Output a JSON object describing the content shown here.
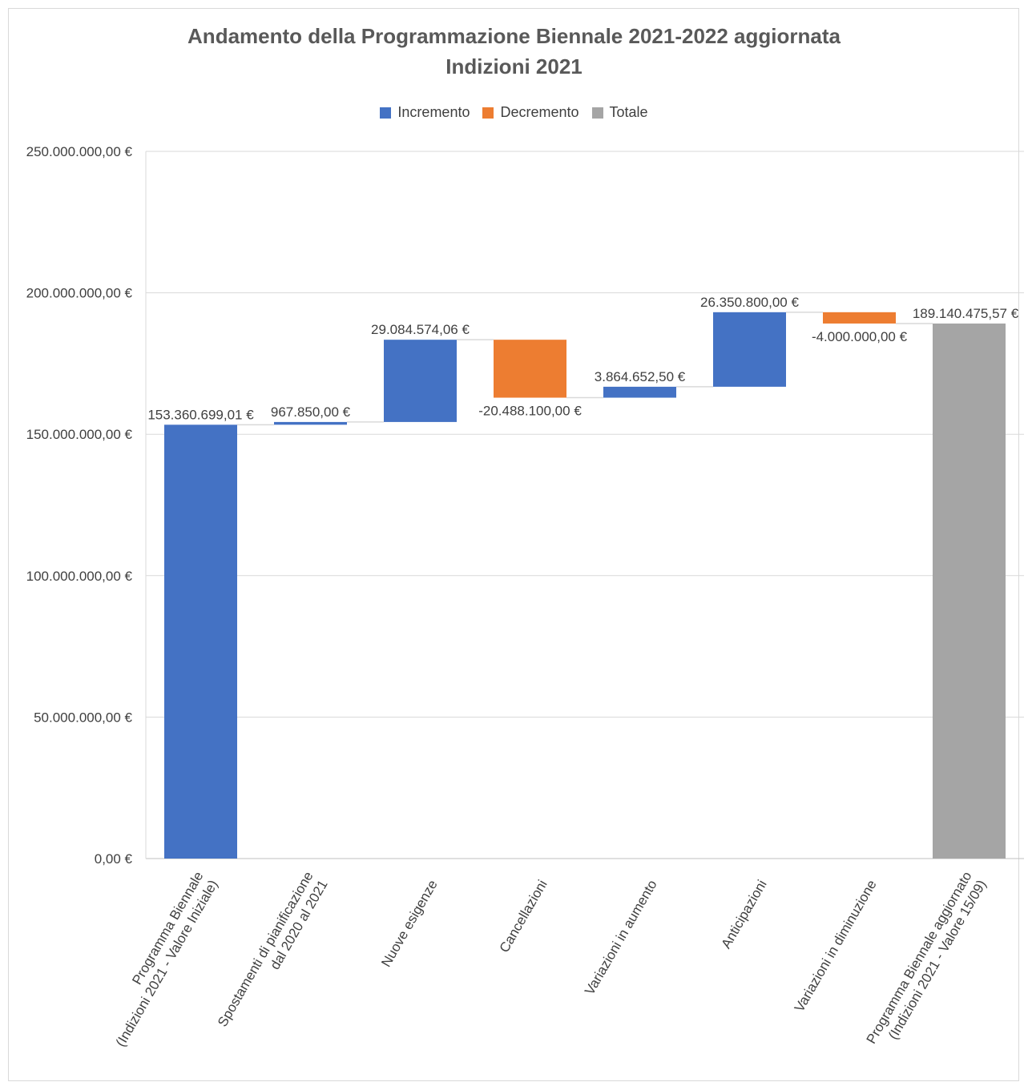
{
  "chart_data": {
    "type": "waterfall",
    "title_line1": "Andamento della Programmazione Biennale 2021-2022 aggiornata",
    "title_line2": "Indizioni 2021",
    "legend": [
      {
        "label": "Incremento",
        "color": "#4472c4"
      },
      {
        "label": "Decremento",
        "color": "#ed7d31"
      },
      {
        "label": "Totale",
        "color": "#a5a5a5"
      }
    ],
    "y_ticks": [
      "0,00 €",
      "50.000.000,00 €",
      "100.000.000,00 €",
      "150.000.000,00 €",
      "200.000.000,00 €",
      "250.000.000,00 €"
    ],
    "ylim": [
      0,
      250000000
    ],
    "grid": true,
    "legend_position": "top",
    "categories": [
      {
        "lines": [
          "Programma Biennale",
          "(Indizioni 2021 - Valore Iniziale)"
        ],
        "value": 153360699.01,
        "kind": "Incremento",
        "label": "153.360.699,01 €"
      },
      {
        "lines": [
          "Spostamenti di pianificazione",
          "dal 2020 al 2021"
        ],
        "value": 967850.0,
        "kind": "Incremento",
        "label": "967.850,00 €"
      },
      {
        "lines": [
          "Nuove esigenze"
        ],
        "value": 29084574.06,
        "kind": "Incremento",
        "label": "29.084.574,06 €"
      },
      {
        "lines": [
          "Cancellazioni"
        ],
        "value": -20488100.0,
        "kind": "Decremento",
        "label": "-20.488.100,00 €"
      },
      {
        "lines": [
          "Variazioni in aumento"
        ],
        "value": 3864652.5,
        "kind": "Incremento",
        "label": "3.864.652,50 €"
      },
      {
        "lines": [
          "Anticipazioni"
        ],
        "value": 26350800.0,
        "kind": "Incremento",
        "label": "26.350.800,00 €"
      },
      {
        "lines": [
          "Variazioni in diminuzione"
        ],
        "value": -4000000.0,
        "kind": "Decremento",
        "label": "-4.000.000,00 €"
      },
      {
        "lines": [
          "Programma Biennale aggiornato",
          "(Indizioni 2021 - Valore 15/09)"
        ],
        "value": 189140475.57,
        "kind": "Totale",
        "label": "189.140.475,57 €"
      }
    ]
  }
}
